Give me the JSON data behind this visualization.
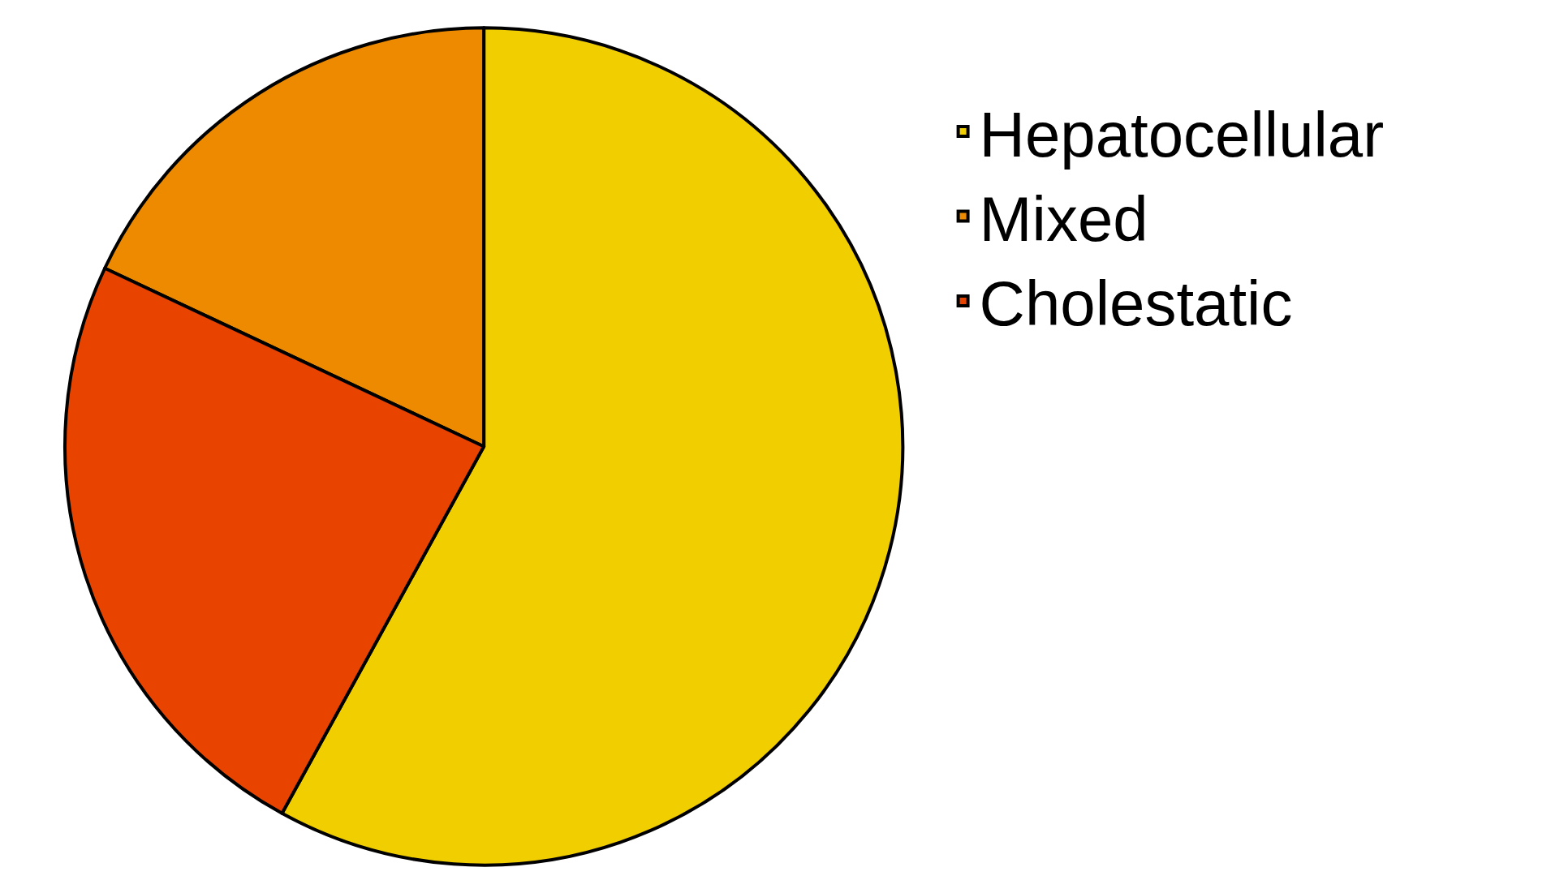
{
  "chart_data": {
    "type": "pie",
    "categories": [
      "Hepatocellular",
      "Mixed",
      "Cholestatic"
    ],
    "values": [
      58,
      18,
      24
    ],
    "colors": [
      "#f0ce00",
      "#ee8a00",
      "#e84400"
    ],
    "legend": "top right"
  }
}
